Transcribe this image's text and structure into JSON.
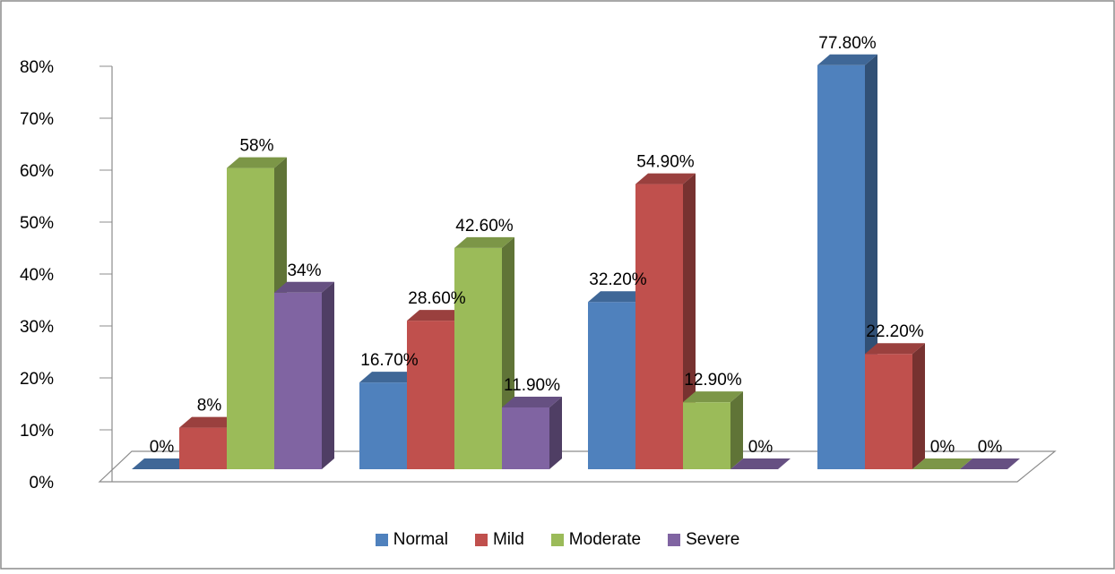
{
  "chart_data": {
    "type": "bar",
    "categories": [
      "",
      "",
      "",
      ""
    ],
    "series": [
      {
        "name": "Normal",
        "values": [
          0,
          16.7,
          32.2,
          77.8
        ],
        "labels": [
          "0%",
          "16.70%",
          "32.20%",
          "77.80%"
        ],
        "color": "#4f81bd"
      },
      {
        "name": "Mild",
        "values": [
          8,
          28.6,
          54.9,
          22.2
        ],
        "labels": [
          "8%",
          "28.60%",
          "54.90%",
          "22.20%"
        ],
        "color": "#c0504d"
      },
      {
        "name": "Moderate",
        "values": [
          58,
          42.6,
          12.9,
          0
        ],
        "labels": [
          "58%",
          "42.60%",
          "12.90%",
          "0%"
        ],
        "color": "#9bbb59"
      },
      {
        "name": "Severe",
        "values": [
          34,
          11.9,
          0,
          0
        ],
        "labels": [
          "34%",
          "11.90%",
          "0%",
          "0%"
        ],
        "color": "#8064a2"
      }
    ],
    "ylim": [
      0,
      80
    ],
    "yticks": [
      "0%",
      "10%",
      "20%",
      "30%",
      "40%",
      "50%",
      "60%",
      "70%",
      "80%"
    ],
    "grid": false,
    "legend_position": "bottom",
    "style": "3d-column"
  }
}
